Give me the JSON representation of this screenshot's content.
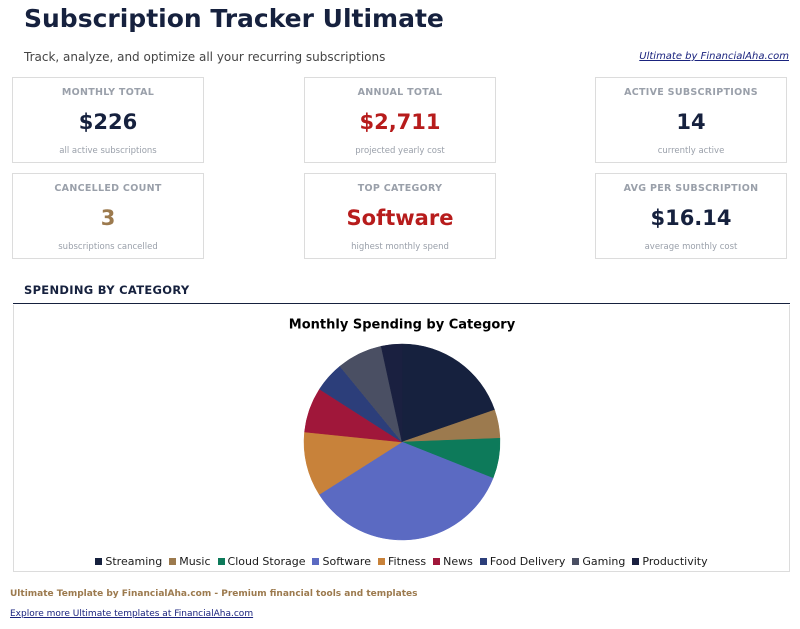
{
  "header": {
    "title": "Subscription Tracker Ultimate",
    "subtitle": "Track, analyze, and optimize all your recurring subscriptions",
    "link": "Ultimate by FinancialAha.com"
  },
  "cards": [
    {
      "label": "MONTHLY TOTAL",
      "value": "$226",
      "note": "all active subscriptions"
    },
    {
      "label": "ANNUAL TOTAL",
      "value": "$2,711",
      "note": "projected yearly cost"
    },
    {
      "label": "ACTIVE SUBSCRIPTIONS",
      "value": "14",
      "note": "currently active"
    },
    {
      "label": "CANCELLED COUNT",
      "value": "3",
      "note": "subscriptions cancelled"
    },
    {
      "label": "TOP CATEGORY",
      "value": "Software",
      "note": "highest monthly spend"
    },
    {
      "label": "AVG PER SUBSCRIPTION",
      "value": "$16.14",
      "note": "average monthly cost"
    }
  ],
  "section_title": "SPENDING BY CATEGORY",
  "chart_data": {
    "type": "pie",
    "title": "Monthly Spending by Category",
    "categories": [
      "Streaming",
      "Music",
      "Cloud Storage",
      "Software",
      "Fitness",
      "News",
      "Food Delivery",
      "Gaming",
      "Productivity"
    ],
    "values": [
      44.5,
      10.6,
      15,
      79,
      24,
      16.8,
      11.3,
      17,
      7.7
    ],
    "colors": [
      "#16213e",
      "#9c7a4e",
      "#0d7a5a",
      "#5b6ac2",
      "#c8823a",
      "#a0173a",
      "#2c3e7a",
      "#4a4f63",
      "#1a2040"
    ]
  },
  "footer": {
    "text": "Ultimate Template by FinancialAha.com - Premium financial tools and templates",
    "link": "Explore more Ultimate templates at FinancialAha.com"
  }
}
